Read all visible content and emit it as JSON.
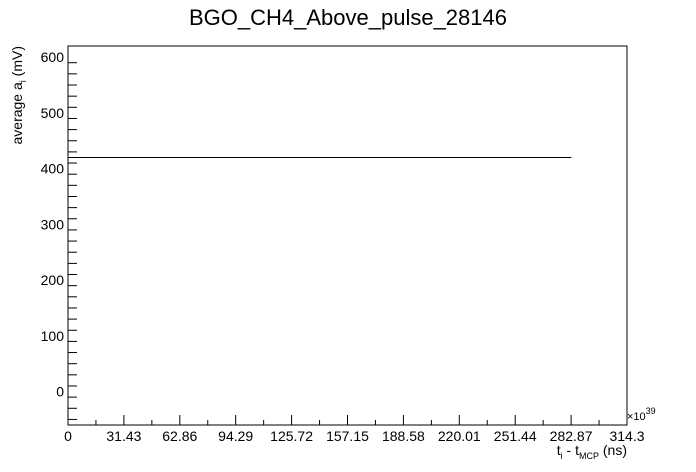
{
  "chart_data": {
    "type": "line",
    "title": "BGO_CH4_Above_pulse_28146",
    "xlabel": {
      "base": "t",
      "sub1": "i",
      "mid": " - t",
      "sub2": "MCP",
      "end": " (ns)"
    },
    "ylabel": {
      "base": "average a",
      "sub": "i",
      "end": " (mV)"
    },
    "x_exponent": "×10",
    "x_exponent_power": "39",
    "xlim": [
      0,
      314.3
    ],
    "ylim": [
      -60,
      620
    ],
    "x_tick_labels": [
      "0",
      "31.43",
      "62.86",
      "94.29",
      "125.72",
      "157.15",
      "188.58",
      "220.01",
      "251.44",
      "282.87",
      "314.3"
    ],
    "y_tick_labels": [
      "0",
      "100",
      "200",
      "300",
      "400",
      "500",
      "600"
    ],
    "x_tick_values": [
      0,
      31.43,
      62.86,
      94.29,
      125.72,
      157.15,
      188.58,
      220.01,
      251.44,
      282.87,
      314.3
    ],
    "y_tick_values": [
      0,
      100,
      200,
      300,
      400,
      500,
      600
    ],
    "series": [
      {
        "segments": [
          {
            "x0": 0,
            "x1": 283,
            "y": 420
          }
        ]
      }
    ],
    "grid": false
  }
}
